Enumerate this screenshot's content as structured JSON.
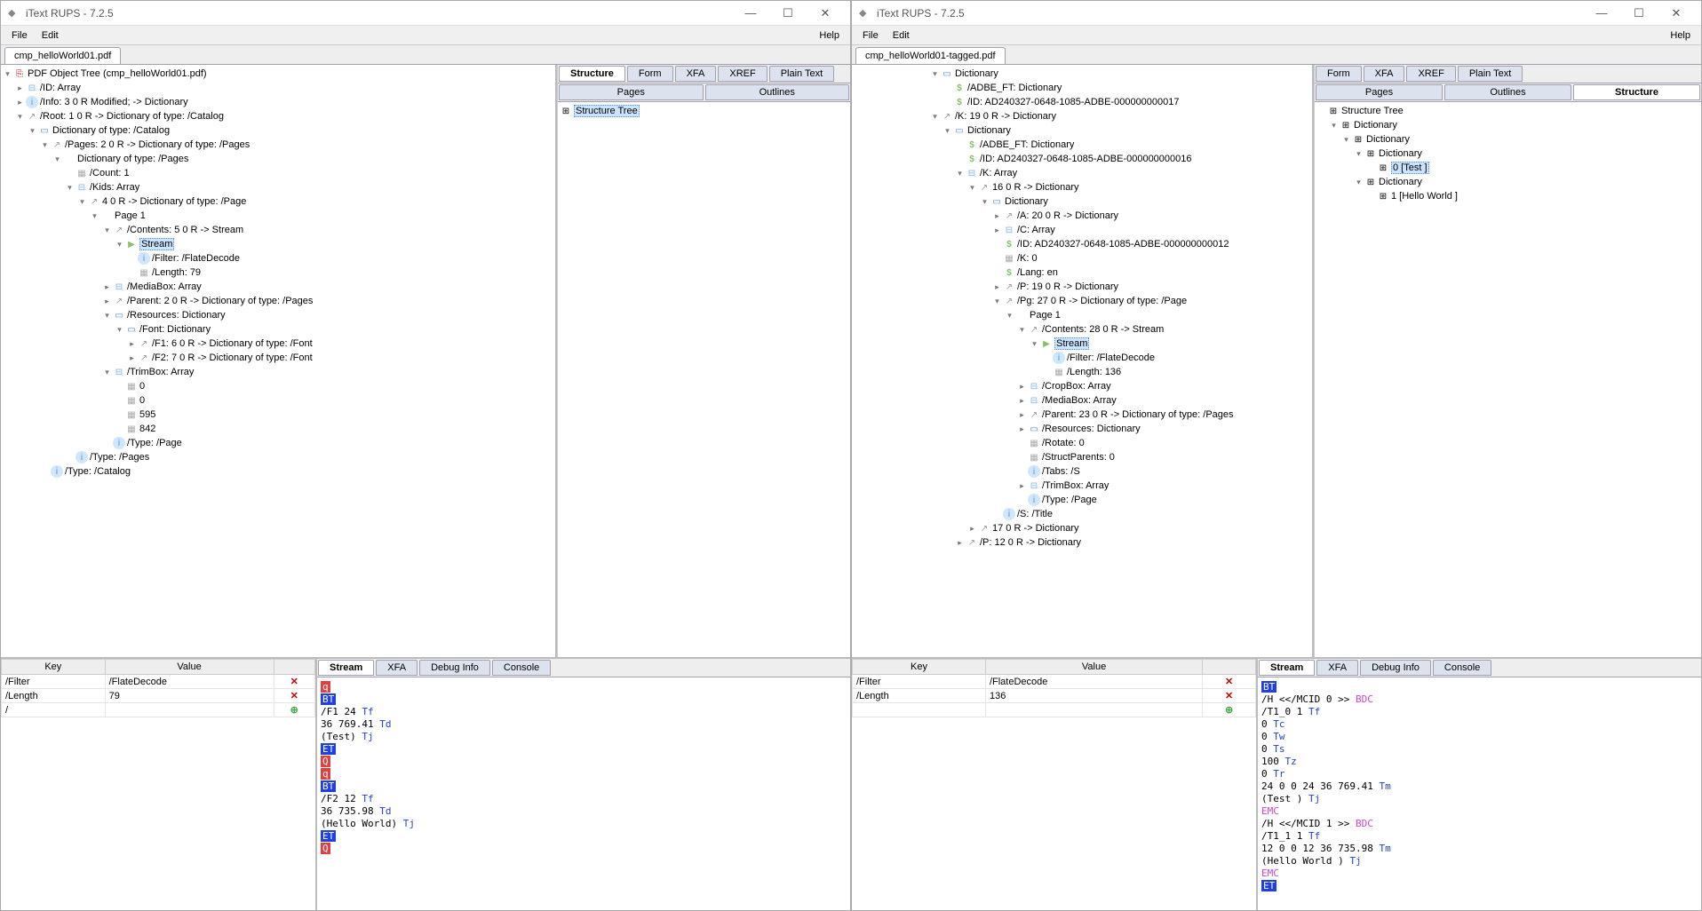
{
  "app_title": "iText RUPS - 7.2.5",
  "menu": {
    "file": "File",
    "edit": "Edit",
    "help": "Help"
  },
  "win_btns": {
    "min": "—",
    "max": "☐",
    "close": "✕"
  },
  "w1": {
    "tab": "cmp_helloWorld01.pdf",
    "tree_root": "PDF Object Tree (cmp_helloWorld01.pdf)",
    "tree": [
      {
        "d": 1,
        "t": "-",
        "i": "arr",
        "l": "/ID: Array"
      },
      {
        "d": 1,
        "t": "-",
        "i": "info",
        "l": "/Info: 3 0 R Modified; -> Dictionary"
      },
      {
        "d": 1,
        "t": "o",
        "i": "ref",
        "l": "/Root: 1 0 R -> Dictionary of type: /Catalog"
      },
      {
        "d": 2,
        "t": "o",
        "i": "dict",
        "l": "Dictionary of type: /Catalog"
      },
      {
        "d": 3,
        "t": "o",
        "i": "ref",
        "l": "/Pages: 2 0 R -> Dictionary of type: /Pages"
      },
      {
        "d": 4,
        "t": "o",
        "i": "",
        "l": "Dictionary of type: /Pages"
      },
      {
        "d": 5,
        "t": "",
        "i": "num",
        "l": "/Count: 1"
      },
      {
        "d": 5,
        "t": "o",
        "i": "arr",
        "l": "/Kids: Array"
      },
      {
        "d": 6,
        "t": "o",
        "i": "ref",
        "l": "4 0 R -> Dictionary of type: /Page"
      },
      {
        "d": 7,
        "t": "o",
        "i": "",
        "l": "Page 1"
      },
      {
        "d": 8,
        "t": "o",
        "i": "ref",
        "l": "/Contents: 5 0 R -> Stream"
      },
      {
        "d": 9,
        "t": "o",
        "i": "str",
        "l": "Stream",
        "sel": true
      },
      {
        "d": 10,
        "t": "",
        "i": "info",
        "l": "/Filter: /FlateDecode"
      },
      {
        "d": 10,
        "t": "",
        "i": "num",
        "l": "/Length: 79"
      },
      {
        "d": 8,
        "t": "-",
        "i": "arr",
        "l": "/MediaBox: Array"
      },
      {
        "d": 8,
        "t": "-",
        "i": "ref",
        "l": "/Parent: 2 0 R -> Dictionary of type: /Pages"
      },
      {
        "d": 8,
        "t": "o",
        "i": "dict",
        "l": "/Resources: Dictionary"
      },
      {
        "d": 9,
        "t": "o",
        "i": "dict",
        "l": "/Font: Dictionary"
      },
      {
        "d": 10,
        "t": "-",
        "i": "ref",
        "l": "/F1: 6 0 R -> Dictionary of type: /Font"
      },
      {
        "d": 10,
        "t": "-",
        "i": "ref",
        "l": "/F2: 7 0 R -> Dictionary of type: /Font"
      },
      {
        "d": 8,
        "t": "o",
        "i": "arr",
        "l": "/TrimBox: Array"
      },
      {
        "d": 9,
        "t": "",
        "i": "num",
        "l": "0"
      },
      {
        "d": 9,
        "t": "",
        "i": "num",
        "l": "0"
      },
      {
        "d": 9,
        "t": "",
        "i": "num",
        "l": "595"
      },
      {
        "d": 9,
        "t": "",
        "i": "num",
        "l": "842"
      },
      {
        "d": 8,
        "t": "",
        "i": "info",
        "l": "/Type: /Page"
      },
      {
        "d": 5,
        "t": "",
        "i": "info",
        "l": "/Type: /Pages"
      },
      {
        "d": 3,
        "t": "",
        "i": "info",
        "l": "/Type: /Catalog"
      }
    ],
    "right_tabs1": [
      "Structure",
      "Form",
      "XFA",
      "XREF",
      "Plain Text"
    ],
    "right_tabs2": [
      "Pages",
      "Outlines"
    ],
    "struct_tree_label": "Structure Tree",
    "kv": {
      "headers": [
        "Key",
        "Value",
        ""
      ],
      "rows": [
        {
          "k": "/Filter",
          "v": "/FlateDecode",
          "a": "✕"
        },
        {
          "k": "/Length",
          "v": "79",
          "a": "✕"
        },
        {
          "k": "/",
          "v": "",
          "a": "⊕"
        }
      ]
    },
    "stream_tabs": [
      "Stream",
      "XFA",
      "Debug Info",
      "Console"
    ],
    "stream_lines": [
      {
        "parts": [
          {
            "c": "op-q",
            "t": "q"
          }
        ]
      },
      {
        "parts": [
          {
            "c": "op-bt",
            "t": "BT"
          }
        ]
      },
      {
        "parts": [
          {
            "c": "",
            "t": "/F1 24 "
          },
          {
            "c": "kw",
            "t": "Tf"
          }
        ]
      },
      {
        "parts": [
          {
            "c": "",
            "t": "36 769.41 "
          },
          {
            "c": "kw",
            "t": "Td"
          }
        ]
      },
      {
        "parts": [
          {
            "c": "",
            "t": "(Test) "
          },
          {
            "c": "kw",
            "t": "Tj"
          }
        ]
      },
      {
        "parts": [
          {
            "c": "op-et",
            "t": "ET"
          }
        ]
      },
      {
        "parts": [
          {
            "c": "op-q2",
            "t": "Q"
          }
        ]
      },
      {
        "parts": [
          {
            "c": "op-q",
            "t": "q"
          }
        ]
      },
      {
        "parts": [
          {
            "c": "op-bt",
            "t": "BT"
          }
        ]
      },
      {
        "parts": [
          {
            "c": "",
            "t": "/F2 12 "
          },
          {
            "c": "kw",
            "t": "Tf"
          }
        ]
      },
      {
        "parts": [
          {
            "c": "",
            "t": "36 735.98 "
          },
          {
            "c": "kw",
            "t": "Td"
          }
        ]
      },
      {
        "parts": [
          {
            "c": "",
            "t": "(Hello World) "
          },
          {
            "c": "kw",
            "t": "Tj"
          }
        ]
      },
      {
        "parts": [
          {
            "c": "op-et",
            "t": "ET"
          }
        ]
      },
      {
        "parts": [
          {
            "c": "op-q2",
            "t": "Q"
          }
        ]
      }
    ]
  },
  "w2": {
    "tab": "cmp_helloWorld01-tagged.pdf",
    "tree": [
      {
        "d": 6,
        "t": "o",
        "i": "dict",
        "l": "Dictionary"
      },
      {
        "d": 7,
        "t": "",
        "i": "dol",
        "l": "/ADBE_FT: Dictionary"
      },
      {
        "d": 7,
        "t": "",
        "i": "dol",
        "l": "/ID: AD240327-0648-1085-ADBE-000000000017"
      },
      {
        "d": 6,
        "t": "o",
        "i": "ref",
        "l": "/K: 19 0 R -> Dictionary"
      },
      {
        "d": 7,
        "t": "o",
        "i": "dict",
        "l": "Dictionary"
      },
      {
        "d": 8,
        "t": "",
        "i": "dol",
        "l": "/ADBE_FT: Dictionary"
      },
      {
        "d": 8,
        "t": "",
        "i": "dol",
        "l": "/ID: AD240327-0648-1085-ADBE-000000000016"
      },
      {
        "d": 8,
        "t": "o",
        "i": "arr",
        "l": "/K: Array"
      },
      {
        "d": 9,
        "t": "o",
        "i": "ref",
        "l": "16 0 R -> Dictionary"
      },
      {
        "d": 10,
        "t": "o",
        "i": "dict",
        "l": "Dictionary"
      },
      {
        "d": 11,
        "t": "-",
        "i": "ref",
        "l": "/A: 20 0 R -> Dictionary"
      },
      {
        "d": 11,
        "t": "-",
        "i": "arr",
        "l": "/C: Array"
      },
      {
        "d": 11,
        "t": "",
        "i": "dol",
        "l": "/ID: AD240327-0648-1085-ADBE-000000000012"
      },
      {
        "d": 11,
        "t": "",
        "i": "num",
        "l": "/K: 0"
      },
      {
        "d": 11,
        "t": "",
        "i": "dol",
        "l": "/Lang: en"
      },
      {
        "d": 11,
        "t": "-",
        "i": "ref",
        "l": "/P: 19 0 R -> Dictionary"
      },
      {
        "d": 11,
        "t": "o",
        "i": "ref",
        "l": "/Pg: 27 0 R -> Dictionary of type: /Page"
      },
      {
        "d": 12,
        "t": "o",
        "i": "",
        "l": "Page 1"
      },
      {
        "d": 13,
        "t": "o",
        "i": "ref",
        "l": "/Contents: 28 0 R -> Stream"
      },
      {
        "d": 14,
        "t": "o",
        "i": "str",
        "l": "Stream",
        "sel": true
      },
      {
        "d": 15,
        "t": "",
        "i": "info",
        "l": "/Filter: /FlateDecode"
      },
      {
        "d": 15,
        "t": "",
        "i": "num",
        "l": "/Length: 136"
      },
      {
        "d": 13,
        "t": "-",
        "i": "arr",
        "l": "/CropBox: Array"
      },
      {
        "d": 13,
        "t": "-",
        "i": "arr",
        "l": "/MediaBox: Array"
      },
      {
        "d": 13,
        "t": "-",
        "i": "ref",
        "l": "/Parent: 23 0 R -> Dictionary of type: /Pages"
      },
      {
        "d": 13,
        "t": "-",
        "i": "dict",
        "l": "/Resources: Dictionary"
      },
      {
        "d": 13,
        "t": "",
        "i": "num",
        "l": "/Rotate: 0"
      },
      {
        "d": 13,
        "t": "",
        "i": "num",
        "l": "/StructParents: 0"
      },
      {
        "d": 13,
        "t": "",
        "i": "info",
        "l": "/Tabs: /S"
      },
      {
        "d": 13,
        "t": "-",
        "i": "arr",
        "l": "/TrimBox: Array"
      },
      {
        "d": 13,
        "t": "",
        "i": "info",
        "l": "/Type: /Page"
      },
      {
        "d": 11,
        "t": "",
        "i": "info",
        "l": "/S: /Title"
      },
      {
        "d": 9,
        "t": "-",
        "i": "ref",
        "l": "17 0 R -> Dictionary"
      },
      {
        "d": 8,
        "t": "-",
        "i": "ref",
        "l": "/P: 12 0 R -> Dictionary"
      }
    ],
    "right_tabs1": [
      "Form",
      "XFA",
      "XREF",
      "Plain Text"
    ],
    "right_tabs2": [
      "Pages",
      "Outlines",
      "Structure"
    ],
    "right_active": "Structure",
    "struct_tree": [
      {
        "d": 0,
        "t": "",
        "i": "",
        "l": "Structure Tree"
      },
      {
        "d": 1,
        "t": "o",
        "i": "",
        "l": "Dictionary"
      },
      {
        "d": 2,
        "t": "o",
        "i": "",
        "l": "Dictionary"
      },
      {
        "d": 3,
        "t": "o",
        "i": "",
        "l": "Dictionary"
      },
      {
        "d": 4,
        "t": "",
        "i": "",
        "l": "0 [Test ]",
        "sel": true
      },
      {
        "d": 3,
        "t": "o",
        "i": "",
        "l": "Dictionary"
      },
      {
        "d": 4,
        "t": "",
        "i": "",
        "l": "1 [Hello World ]"
      }
    ],
    "kv": {
      "headers": [
        "Key",
        "Value",
        ""
      ],
      "rows": [
        {
          "k": "/Filter",
          "v": "/FlateDecode",
          "a": "✕"
        },
        {
          "k": "/Length",
          "v": "136",
          "a": "✕"
        },
        {
          "k": "",
          "v": "",
          "a": "⊕"
        }
      ]
    },
    "stream_tabs": [
      "Stream",
      "XFA",
      "Debug Info",
      "Console"
    ],
    "stream_lines": [
      {
        "parts": [
          {
            "c": "op-bt",
            "t": "BT"
          }
        ]
      },
      {
        "parts": [
          {
            "c": "",
            "t": "/H <</MCID 0 >> "
          },
          {
            "c": "kw2",
            "t": "BDC"
          }
        ]
      },
      {
        "parts": [
          {
            "c": "",
            "t": "/T1_0 1 "
          },
          {
            "c": "kw",
            "t": "Tf"
          }
        ]
      },
      {
        "parts": [
          {
            "c": "",
            "t": "0 "
          },
          {
            "c": "kw",
            "t": "Tc"
          }
        ]
      },
      {
        "parts": [
          {
            "c": "",
            "t": "0 "
          },
          {
            "c": "kw",
            "t": "Tw"
          }
        ]
      },
      {
        "parts": [
          {
            "c": "",
            "t": "0 "
          },
          {
            "c": "kw",
            "t": "Ts"
          }
        ]
      },
      {
        "parts": [
          {
            "c": "",
            "t": "100 "
          },
          {
            "c": "kw",
            "t": "Tz"
          }
        ]
      },
      {
        "parts": [
          {
            "c": "",
            "t": "0 "
          },
          {
            "c": "kw",
            "t": "Tr"
          }
        ]
      },
      {
        "parts": [
          {
            "c": "",
            "t": "24 0 0 24 36 769.41 "
          },
          {
            "c": "kw",
            "t": "Tm"
          }
        ]
      },
      {
        "parts": [
          {
            "c": "",
            "t": "(Test ) "
          },
          {
            "c": "kw",
            "t": "Tj"
          }
        ]
      },
      {
        "parts": [
          {
            "c": "kw2",
            "t": "EMC"
          }
        ]
      },
      {
        "parts": [
          {
            "c": "",
            "t": "/H <</MCID 1 >> "
          },
          {
            "c": "kw2",
            "t": "BDC"
          }
        ]
      },
      {
        "parts": [
          {
            "c": "",
            "t": "/T1_1 1 "
          },
          {
            "c": "kw",
            "t": "Tf"
          }
        ]
      },
      {
        "parts": [
          {
            "c": "",
            "t": "12 0 0 12 36 735.98 "
          },
          {
            "c": "kw",
            "t": "Tm"
          }
        ]
      },
      {
        "parts": [
          {
            "c": "",
            "t": "(Hello World ) "
          },
          {
            "c": "kw",
            "t": "Tj"
          }
        ]
      },
      {
        "parts": [
          {
            "c": "kw2",
            "t": "EMC"
          }
        ]
      },
      {
        "parts": [
          {
            "c": "op-et",
            "t": "ET"
          }
        ]
      }
    ]
  }
}
